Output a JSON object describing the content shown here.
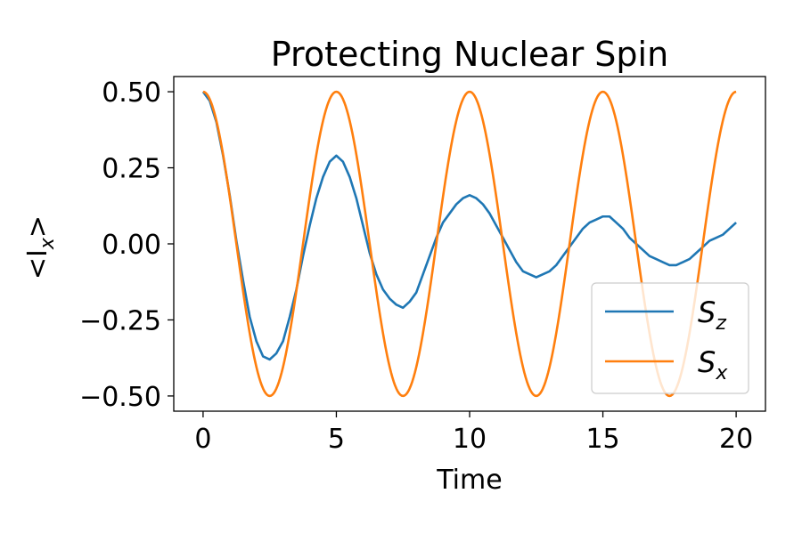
{
  "chart_data": {
    "type": "line",
    "title": "Protecting Nuclear Spin",
    "xlabel": "Time",
    "ylabel": "<I",
    "ylabel_sub": "x",
    "ylabel_suffix": ">",
    "xlim": [
      -1.1,
      21.1
    ],
    "ylim": [
      -0.55,
      0.55
    ],
    "xticks": [
      0,
      5,
      10,
      15,
      20
    ],
    "xtick_labels": [
      "0",
      "5",
      "10",
      "15",
      "20"
    ],
    "yticks": [
      0.5,
      0.25,
      0.0,
      -0.25,
      -0.5
    ],
    "ytick_labels": [
      "0.50",
      "0.25",
      "0.00",
      "−0.25",
      "−0.50"
    ],
    "grid": false,
    "legend_position": "lower right",
    "series": [
      {
        "name": "S",
        "name_sub": "z",
        "color": "#1f77b4",
        "x": [
          0,
          0.25,
          0.5,
          0.75,
          1.0,
          1.25,
          1.5,
          1.75,
          2.0,
          2.25,
          2.5,
          2.75,
          3.0,
          3.25,
          3.5,
          3.75,
          4.0,
          4.25,
          4.5,
          4.75,
          5.0,
          5.25,
          5.5,
          5.75,
          6.0,
          6.25,
          6.5,
          6.75,
          7.0,
          7.25,
          7.5,
          7.75,
          8.0,
          8.25,
          8.5,
          8.75,
          9.0,
          9.25,
          9.5,
          9.75,
          10.0,
          10.25,
          10.5,
          10.75,
          11.0,
          11.25,
          11.5,
          11.75,
          12.0,
          12.25,
          12.5,
          12.75,
          13.0,
          13.25,
          13.5,
          13.75,
          14.0,
          14.25,
          14.5,
          14.75,
          15.0,
          15.25,
          15.5,
          15.75,
          16.0,
          16.25,
          16.5,
          16.75,
          17.0,
          17.25,
          17.5,
          17.75,
          18.0,
          18.25,
          18.5,
          18.75,
          19.0,
          19.25,
          19.5,
          19.75,
          20.0
        ],
        "y": [
          0.5,
          0.47,
          0.4,
          0.29,
          0.16,
          0.01,
          -0.12,
          -0.24,
          -0.32,
          -0.37,
          -0.38,
          -0.36,
          -0.32,
          -0.24,
          -0.15,
          -0.04,
          0.06,
          0.15,
          0.22,
          0.27,
          0.29,
          0.27,
          0.22,
          0.15,
          0.06,
          -0.03,
          -0.1,
          -0.15,
          -0.18,
          -0.2,
          -0.21,
          -0.19,
          -0.16,
          -0.1,
          -0.04,
          0.02,
          0.07,
          0.1,
          0.13,
          0.15,
          0.16,
          0.15,
          0.13,
          0.1,
          0.06,
          0.02,
          -0.02,
          -0.06,
          -0.09,
          -0.1,
          -0.11,
          -0.1,
          -0.09,
          -0.07,
          -0.04,
          -0.01,
          0.02,
          0.05,
          0.07,
          0.08,
          0.09,
          0.09,
          0.07,
          0.05,
          0.02,
          0.0,
          -0.02,
          -0.04,
          -0.05,
          -0.06,
          -0.07,
          -0.07,
          -0.06,
          -0.05,
          -0.03,
          -0.01,
          0.01,
          0.02,
          0.03,
          0.05,
          0.07
        ]
      },
      {
        "name": "S",
        "name_sub": "x",
        "color": "#ff7f0e",
        "function": "0.5*cos(2*pi*t/5)",
        "x_range": [
          0,
          20
        ]
      }
    ]
  }
}
